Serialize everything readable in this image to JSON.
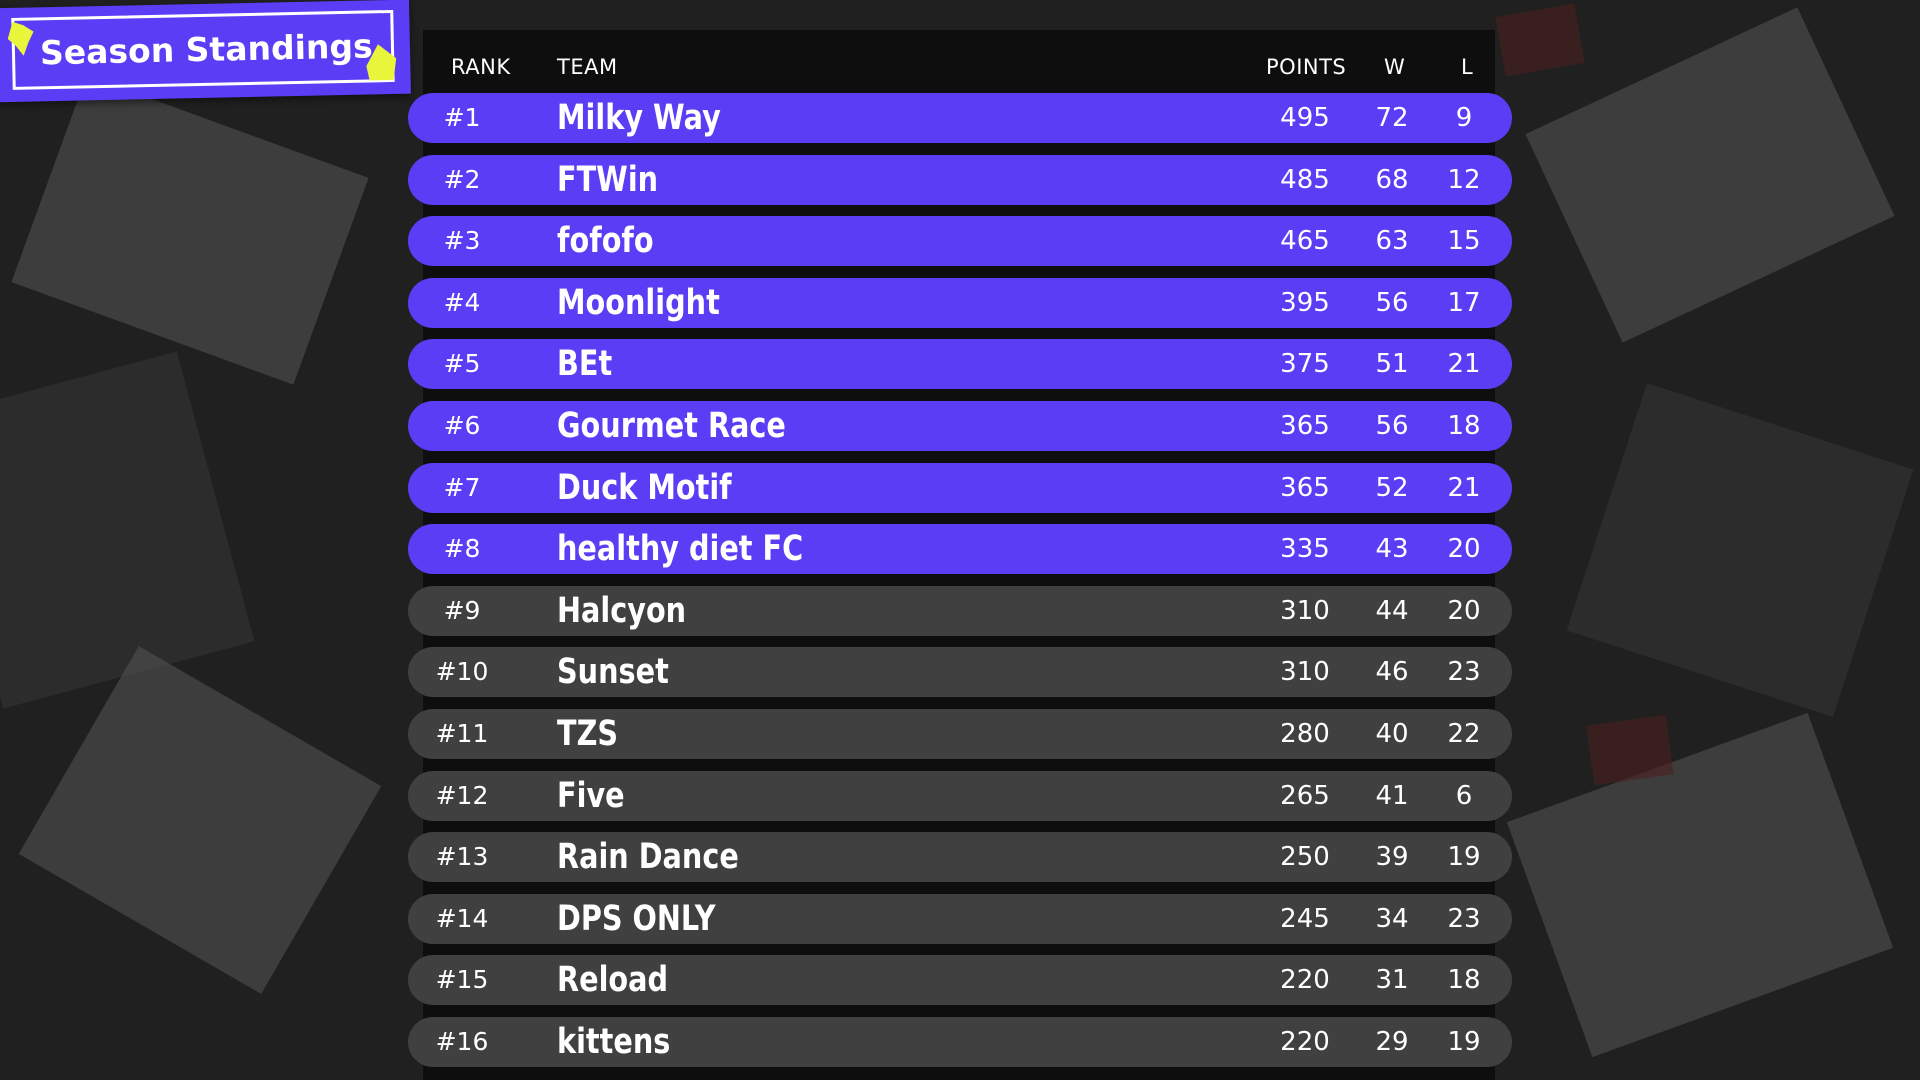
{
  "title": "Season Standings",
  "colors": {
    "accent": "#5b3df5",
    "highlight": "#e8f53a",
    "row_dark": "#404040",
    "header_bg": "#0c0c0c"
  },
  "columns": {
    "rank": "RANK",
    "team": "TEAM",
    "points": "POINTS",
    "w": "W",
    "l": "L"
  },
  "rows": [
    {
      "rank": "#1",
      "team": "Milky Way",
      "points": "495",
      "w": "72",
      "l": "9"
    },
    {
      "rank": "#2",
      "team": "FTWin",
      "points": "485",
      "w": "68",
      "l": "12"
    },
    {
      "rank": "#3",
      "team": "fofofo",
      "points": "465",
      "w": "63",
      "l": "15"
    },
    {
      "rank": "#4",
      "team": "Moonlight",
      "points": "395",
      "w": "56",
      "l": "17"
    },
    {
      "rank": "#5",
      "team": "BEt",
      "points": "375",
      "w": "51",
      "l": "21"
    },
    {
      "rank": "#6",
      "team": "Gourmet Race",
      "points": "365",
      "w": "56",
      "l": "18"
    },
    {
      "rank": "#7",
      "team": "Duck Motif",
      "points": "365",
      "w": "52",
      "l": "21"
    },
    {
      "rank": "#8",
      "team": "healthy diet FC",
      "points": "335",
      "w": "43",
      "l": "20"
    },
    {
      "rank": "#9",
      "team": "Halcyon",
      "points": "310",
      "w": "44",
      "l": "20"
    },
    {
      "rank": "#10",
      "team": "Sunset",
      "points": "310",
      "w": "46",
      "l": "23"
    },
    {
      "rank": "#11",
      "team": "TZS",
      "points": "280",
      "w": "40",
      "l": "22"
    },
    {
      "rank": "#12",
      "team": "Five",
      "points": "265",
      "w": "41",
      "l": "6"
    },
    {
      "rank": "#13",
      "team": "Rain Dance",
      "points": "250",
      "w": "39",
      "l": "19"
    },
    {
      "rank": "#14",
      "team": "DPS ONLY",
      "points": "245",
      "w": "34",
      "l": "23"
    },
    {
      "rank": "#15",
      "team": "Reload",
      "points": "220",
      "w": "31",
      "l": "18"
    },
    {
      "rank": "#16",
      "team": "kittens",
      "points": "220",
      "w": "29",
      "l": "19"
    }
  ]
}
